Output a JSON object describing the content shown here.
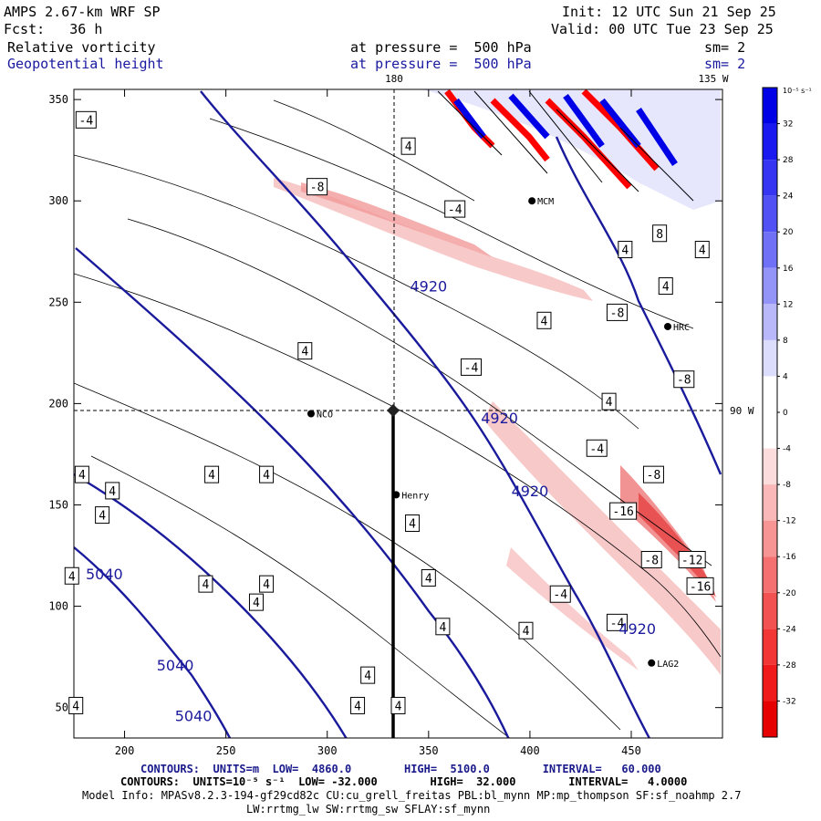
{
  "header": {
    "model": "AMPS 2.67-km WRF SP",
    "forecast": "Fcst:   36 h",
    "init": "Init: 12 UTC Sun 21 Sep 25",
    "valid": "Valid: 00 UTC Tue 23 Sep 25",
    "field1": "Relative vorticity",
    "field1_level": "at pressure =  500 hPa",
    "field1_sm": "sm= 2",
    "field2": "Geopotential height",
    "field2_level": "at pressure =  500 hPa",
    "field2_sm": "sm= 2"
  },
  "map": {
    "lon_180": "180",
    "lon_135w": "135 W",
    "lon_90w": "90 W",
    "x_ticks": [
      "200",
      "250",
      "300",
      "350",
      "400",
      "450"
    ],
    "y_ticks": [
      "350",
      "300",
      "250",
      "200",
      "150",
      "100",
      "50"
    ],
    "stations": [
      {
        "name": "MCM",
        "x": 401,
        "y": 300
      },
      {
        "name": "HRC",
        "x": 468,
        "y": 238
      },
      {
        "name": "NCO",
        "x": 292,
        "y": 195
      },
      {
        "name": "Henry",
        "x": 334,
        "y": 155
      },
      {
        "name": "LAG2",
        "x": 460,
        "y": 72
      }
    ],
    "height_labels": [
      {
        "text": "4920",
        "x": 350,
        "y": 258
      },
      {
        "text": "4920",
        "x": 385,
        "y": 193
      },
      {
        "text": "4920",
        "x": 400,
        "y": 157
      },
      {
        "text": "4920",
        "x": 453,
        "y": 89
      },
      {
        "text": "5040",
        "x": 190,
        "y": 116
      },
      {
        "text": "5040",
        "x": 225,
        "y": 71
      },
      {
        "text": "5040",
        "x": 234,
        "y": 46
      }
    ],
    "vorticity_labels": [
      {
        "text": "-4",
        "x": 181,
        "y": 340
      },
      {
        "text": "4",
        "x": 340,
        "y": 327
      },
      {
        "text": "-8",
        "x": 295,
        "y": 307
      },
      {
        "text": "-4",
        "x": 363,
        "y": 296
      },
      {
        "text": "8",
        "x": 464,
        "y": 284
      },
      {
        "text": "4",
        "x": 447,
        "y": 276
      },
      {
        "text": "4",
        "x": 485,
        "y": 276
      },
      {
        "text": "4",
        "x": 467,
        "y": 258
      },
      {
        "text": "4",
        "x": 407,
        "y": 241
      },
      {
        "text": "-8",
        "x": 443,
        "y": 245
      },
      {
        "text": "4",
        "x": 289,
        "y": 226
      },
      {
        "text": "-4",
        "x": 371,
        "y": 218
      },
      {
        "text": "-8",
        "x": 476,
        "y": 212
      },
      {
        "text": "4",
        "x": 439,
        "y": 201
      },
      {
        "text": "-4",
        "x": 433,
        "y": 178
      },
      {
        "text": "-8",
        "x": 461,
        "y": 165
      },
      {
        "text": "-16",
        "x": 446,
        "y": 147
      },
      {
        "text": "-8",
        "x": 460,
        "y": 123
      },
      {
        "text": "-12",
        "x": 480,
        "y": 123
      },
      {
        "text": "-16",
        "x": 484,
        "y": 110
      },
      {
        "text": "-4",
        "x": 415,
        "y": 106
      },
      {
        "text": "-4",
        "x": 443,
        "y": 92
      },
      {
        "text": "4",
        "x": 398,
        "y": 88
      },
      {
        "text": "4",
        "x": 243,
        "y": 165
      },
      {
        "text": "4",
        "x": 270,
        "y": 165
      },
      {
        "text": "4",
        "x": 179,
        "y": 165
      },
      {
        "text": "4",
        "x": 194,
        "y": 157
      },
      {
        "text": "4",
        "x": 189,
        "y": 145
      },
      {
        "text": "4",
        "x": 342,
        "y": 141
      },
      {
        "text": "4",
        "x": 350,
        "y": 114
      },
      {
        "text": "4",
        "x": 174,
        "y": 115
      },
      {
        "text": "4",
        "x": 240,
        "y": 111
      },
      {
        "text": "4",
        "x": 270,
        "y": 111
      },
      {
        "text": "4",
        "x": 265,
        "y": 102
      },
      {
        "text": "4",
        "x": 357,
        "y": 90
      },
      {
        "text": "4",
        "x": 320,
        "y": 66
      },
      {
        "text": "4",
        "x": 315,
        "y": 51
      },
      {
        "text": "4",
        "x": 335,
        "y": 51
      },
      {
        "text": "4",
        "x": 176,
        "y": 51
      }
    ]
  },
  "colorbar": {
    "unit": "10⁻⁵ s⁻¹",
    "labels": [
      "32",
      "28",
      "24",
      "20",
      "16",
      "12",
      "8",
      "4",
      "0",
      "-4",
      "-8",
      "-12",
      "-16",
      "-20",
      "-24",
      "-28",
      "-32"
    ],
    "colors": [
      "#0000e6",
      "#1a1af0",
      "#3636f2",
      "#5252f4",
      "#7070f6",
      "#9494f8",
      "#b8b8fa",
      "#dcdcfc",
      "#ffffff",
      "#ffffff",
      "#fcdcdc",
      "#fab8b8",
      "#f79494",
      "#f57070",
      "#f35252",
      "#f23636",
      "#f01a1a",
      "#e60000"
    ]
  },
  "footer": {
    "line1": "CONTOURS:  UNITS=m  LOW=  4860.0        HIGH=  5100.0        INTERVAL=   60.000",
    "line2": "CONTOURS:  UNITS=10⁻⁵ s⁻¹  LOW= -32.000        HIGH=  32.000        INTERVAL=   4.0000",
    "line3": "Model Info: MPASv8.2.3-194-gf29cd82c CU:cu_grell_freitas PBL:bl_mynn MP:mp_thompson SF:sf_noahmp 2.7",
    "line4": "LW:rrtmg_lw SW:rrtmg_sw SFLAY:sf_mynn"
  }
}
